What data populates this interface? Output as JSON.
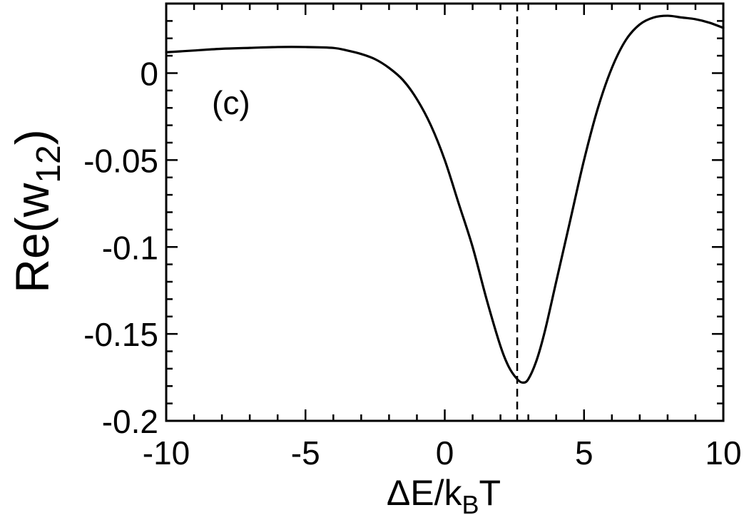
{
  "chart_data": {
    "type": "line",
    "panel_label": "(c)",
    "xlabel": {
      "main": "ΔE/k",
      "sub": "B",
      "tail": "T"
    },
    "ylabel": {
      "main": "Re(w",
      "sub": "12",
      "tail": ")"
    },
    "xlim": [
      -10,
      10
    ],
    "ylim": [
      -0.2,
      0.04
    ],
    "x_ticks": [
      -10,
      -5,
      0,
      5,
      10
    ],
    "x_tick_labels": [
      "-10",
      "-5",
      "0",
      "5",
      "10"
    ],
    "y_ticks": [
      -0.2,
      -0.15,
      -0.1,
      -0.05,
      0
    ],
    "y_tick_labels": [
      "-0.2",
      "-0.15",
      "-0.1",
      "-0.05",
      "0"
    ],
    "grid": false,
    "reference_line": {
      "x": 2.6,
      "style": "dashed"
    },
    "series": [
      {
        "x": [
          -10,
          -9,
          -8,
          -7,
          -6,
          -5,
          -4,
          -3.5,
          -3,
          -2.5,
          -2,
          -1.5,
          -1,
          -0.5,
          0,
          0.5,
          1,
          1.5,
          2,
          2.3,
          2.6,
          2.8,
          3.0,
          3.3,
          3.6,
          4,
          4.5,
          5,
          5.5,
          6,
          6.5,
          7,
          7.5,
          8,
          8.5,
          9,
          9.5,
          10
        ],
        "y": [
          0.012,
          0.013,
          0.014,
          0.0145,
          0.015,
          0.015,
          0.0145,
          0.013,
          0.011,
          0.008,
          0.003,
          -0.004,
          -0.015,
          -0.03,
          -0.05,
          -0.075,
          -0.1,
          -0.13,
          -0.157,
          -0.169,
          -0.176,
          -0.178,
          -0.176,
          -0.165,
          -0.148,
          -0.12,
          -0.085,
          -0.05,
          -0.02,
          0.003,
          0.019,
          0.028,
          0.032,
          0.033,
          0.032,
          0.031,
          0.029,
          0.026
        ]
      }
    ]
  }
}
